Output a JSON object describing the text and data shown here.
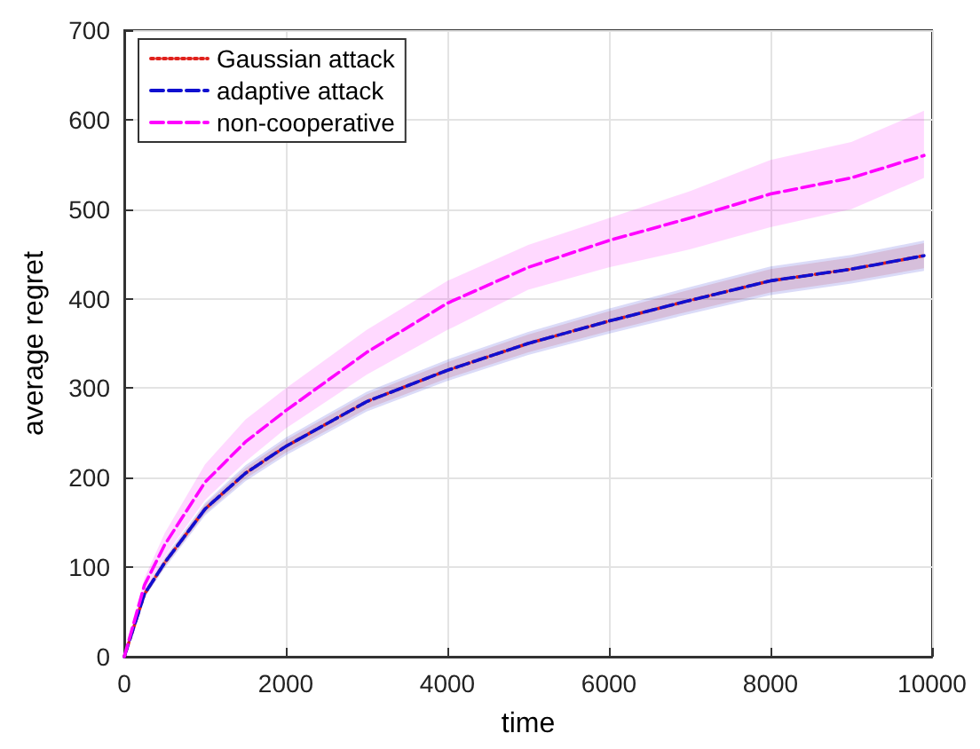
{
  "chart_data": {
    "type": "line",
    "xlabel": "time",
    "ylabel": "average regret",
    "xlim": [
      0,
      10000
    ],
    "xticks": [
      0,
      2000,
      4000,
      6000,
      8000,
      10000
    ],
    "ylim": [
      0,
      700
    ],
    "yticks": [
      0,
      100,
      200,
      300,
      400,
      500,
      600,
      700
    ],
    "grid": true,
    "legend": "top left",
    "marker": "none",
    "series": [
      {
        "name": "Gaussian attack",
        "color": "#e0201b",
        "line_style": "dotted",
        "x": [
          0,
          250,
          500,
          1000,
          1500,
          2000,
          3000,
          4000,
          5000,
          6000,
          7000,
          8000,
          9000,
          9900
        ],
        "values": [
          0,
          70,
          105,
          165,
          205,
          235,
          285,
          320,
          350,
          375,
          398,
          420,
          433,
          448
        ],
        "lower": [
          0,
          67,
          101,
          160,
          199,
          228,
          277,
          311,
          340,
          364,
          386,
          407,
          420,
          434
        ],
        "upper": [
          0,
          73,
          109,
          170,
          211,
          242,
          293,
          329,
          360,
          386,
          410,
          433,
          446,
          462
        ]
      },
      {
        "name": "adaptive attack",
        "color": "#1010d0",
        "line_style": "dashed",
        "x": [
          0,
          250,
          500,
          1000,
          1500,
          2000,
          3000,
          4000,
          5000,
          6000,
          7000,
          8000,
          9000,
          9900
        ],
        "values": [
          0,
          70,
          105,
          165,
          205,
          235,
          285,
          320,
          350,
          375,
          398,
          420,
          433,
          448
        ],
        "lower": [
          0,
          66,
          99,
          158,
          196,
          225,
          274,
          308,
          337,
          361,
          383,
          404,
          417,
          431
        ],
        "upper": [
          0,
          74,
          111,
          172,
          214,
          245,
          296,
          332,
          363,
          389,
          413,
          436,
          449,
          465
        ]
      },
      {
        "name": "non-cooperative",
        "color": "#ff00ff",
        "line_style": "dashed",
        "x": [
          0,
          250,
          500,
          1000,
          1500,
          2000,
          3000,
          4000,
          5000,
          6000,
          7000,
          8000,
          9000,
          9900
        ],
        "values": [
          0,
          80,
          125,
          195,
          240,
          275,
          340,
          395,
          435,
          465,
          490,
          517,
          535,
          560
        ],
        "lower": [
          0,
          72,
          112,
          175,
          218,
          255,
          315,
          365,
          410,
          435,
          455,
          480,
          500,
          535
        ],
        "upper": [
          0,
          88,
          138,
          215,
          265,
          300,
          365,
          420,
          460,
          490,
          520,
          555,
          575,
          610
        ]
      }
    ]
  }
}
